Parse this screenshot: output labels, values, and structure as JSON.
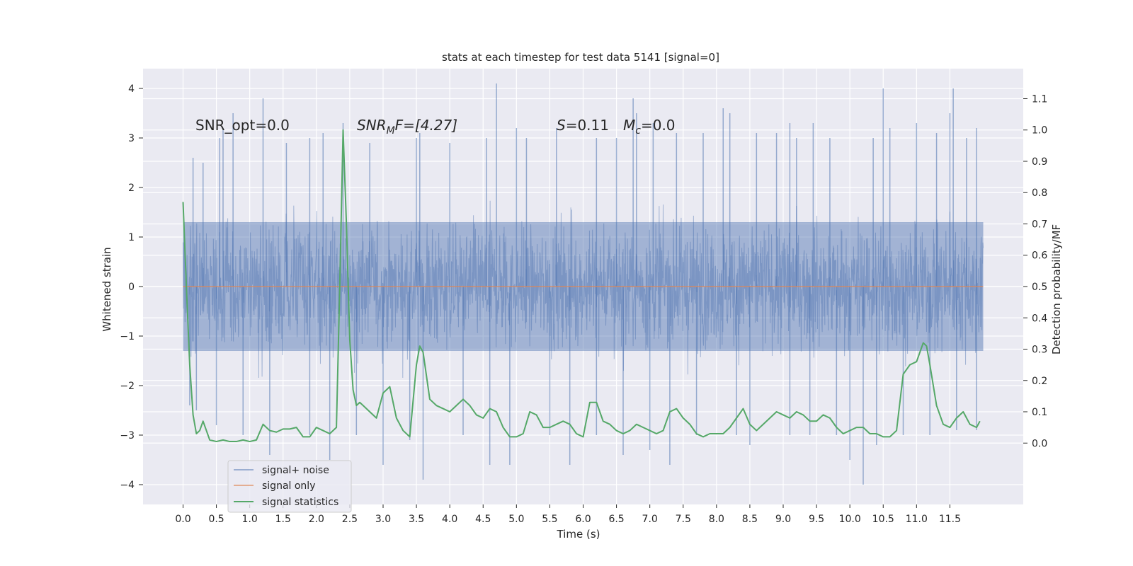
{
  "chart_data": {
    "type": "line",
    "title": "stats at each timestep for test data 5141 [signal=0]",
    "xlabel": "Time (s)",
    "ylabel": "Whitened strain",
    "ylabel_right": "Detection probability/MF",
    "xlim": [
      -0.6,
      12.6
    ],
    "ylim": [
      -4.4,
      4.4
    ],
    "ylim_right": [
      -0.196,
      1.196
    ],
    "x_ticks": [
      "0.0",
      "0.5",
      "1.0",
      "1.5",
      "2.0",
      "2.5",
      "3.0",
      "3.5",
      "4.0",
      "4.5",
      "5.0",
      "5.5",
      "6.0",
      "6.5",
      "7.0",
      "7.5",
      "8.0",
      "8.5",
      "9.0",
      "9.5",
      "10.0",
      "10.5",
      "11.0",
      "11.5"
    ],
    "y_ticks": [
      "4",
      "3",
      "2",
      "1",
      "0",
      "−1",
      "−2",
      "−3",
      "−4"
    ],
    "y_ticks_right": [
      "1.1",
      "1.0",
      "0.9",
      "0.8",
      "0.7",
      "0.6",
      "0.5",
      "0.4",
      "0.3",
      "0.2",
      "0.1",
      "0.0"
    ],
    "grid": true,
    "legend_position": "lower-left",
    "annotations": {
      "snr_opt": "SNR_opt=0.0",
      "snr_mf_main": "SNR",
      "snr_mf_sub": "M",
      "snr_mf_rest": "F=[4.27]",
      "s_label": "S",
      "s_value": "=0.11",
      "mc_label": "M",
      "mc_sub": "c",
      "mc_value": "=0.0"
    },
    "series": [
      {
        "name": "signal+ noise",
        "color": "#4c72b0",
        "axis": "left",
        "x_range": [
          0.0,
          12.0
        ],
        "envelope_upper": 2.2,
        "envelope_lower": -2.0,
        "core_band": [
          -1.3,
          1.3
        ],
        "peak_spikes_up": [
          [
            0.15,
            2.6
          ],
          [
            0.3,
            2.5
          ],
          [
            0.55,
            3.0
          ],
          [
            0.6,
            3.2
          ],
          [
            0.75,
            3.5
          ],
          [
            1.2,
            3.8
          ],
          [
            1.55,
            2.9
          ],
          [
            1.9,
            3.0
          ],
          [
            2.1,
            3.1
          ],
          [
            2.4,
            3.3
          ],
          [
            2.8,
            2.9
          ],
          [
            3.5,
            3.0
          ],
          [
            3.55,
            3.1
          ],
          [
            4.0,
            2.9
          ],
          [
            4.55,
            3.0
          ],
          [
            4.7,
            4.1
          ],
          [
            5.0,
            3.2
          ],
          [
            5.15,
            3.0
          ],
          [
            5.6,
            3.2
          ],
          [
            6.2,
            3.0
          ],
          [
            6.5,
            3.0
          ],
          [
            6.75,
            3.8
          ],
          [
            6.8,
            3.5
          ],
          [
            7.05,
            3.3
          ],
          [
            7.4,
            3.1
          ],
          [
            7.8,
            3.1
          ],
          [
            8.1,
            3.6
          ],
          [
            8.2,
            3.5
          ],
          [
            8.6,
            3.1
          ],
          [
            8.9,
            3.1
          ],
          [
            9.1,
            3.3
          ],
          [
            9.2,
            3.0
          ],
          [
            9.45,
            3.3
          ],
          [
            9.7,
            3.0
          ],
          [
            10.35,
            3.0
          ],
          [
            10.5,
            4.0
          ],
          [
            10.6,
            3.2
          ],
          [
            11.0,
            3.3
          ],
          [
            11.3,
            3.1
          ],
          [
            11.5,
            3.5
          ],
          [
            11.55,
            4.0
          ],
          [
            11.75,
            3.0
          ],
          [
            11.9,
            3.2
          ]
        ],
        "peak_spikes_down": [
          [
            0.1,
            -2.4
          ],
          [
            0.2,
            -2.5
          ],
          [
            0.5,
            -2.8
          ],
          [
            0.9,
            -3.0
          ],
          [
            1.3,
            -3.4
          ],
          [
            1.9,
            -3.0
          ],
          [
            2.2,
            -3.5
          ],
          [
            2.6,
            -3.0
          ],
          [
            3.0,
            -3.6
          ],
          [
            3.4,
            -3.1
          ],
          [
            3.6,
            -3.9
          ],
          [
            4.2,
            -3.0
          ],
          [
            4.6,
            -3.6
          ],
          [
            4.9,
            -3.6
          ],
          [
            5.5,
            -3.0
          ],
          [
            5.8,
            -3.6
          ],
          [
            6.2,
            -3.0
          ],
          [
            6.6,
            -3.4
          ],
          [
            7.0,
            -3.3
          ],
          [
            7.3,
            -3.6
          ],
          [
            7.7,
            -3.0
          ],
          [
            8.3,
            -3.0
          ],
          [
            8.5,
            -3.2
          ],
          [
            9.1,
            -3.0
          ],
          [
            9.4,
            -3.0
          ],
          [
            9.8,
            -3.0
          ],
          [
            10.0,
            -3.5
          ],
          [
            10.2,
            -4.0
          ],
          [
            10.4,
            -3.2
          ],
          [
            10.8,
            -3.0
          ],
          [
            11.2,
            -3.0
          ],
          [
            11.6,
            -2.9
          ],
          [
            11.9,
            -2.9
          ]
        ]
      },
      {
        "name": "signal only",
        "color": "#dd8452",
        "axis": "left",
        "x": [
          0.0,
          12.0
        ],
        "y": [
          0.0,
          0.0
        ]
      },
      {
        "name": "signal statistics",
        "color": "#55a868",
        "axis": "right",
        "x": [
          0.0,
          0.05,
          0.1,
          0.15,
          0.2,
          0.25,
          0.3,
          0.35,
          0.4,
          0.5,
          0.6,
          0.7,
          0.8,
          0.9,
          1.0,
          1.1,
          1.2,
          1.3,
          1.4,
          1.5,
          1.6,
          1.7,
          1.8,
          1.9,
          2.0,
          2.1,
          2.2,
          2.3,
          2.35,
          2.4,
          2.45,
          2.5,
          2.55,
          2.6,
          2.65,
          2.7,
          2.8,
          2.9,
          3.0,
          3.1,
          3.2,
          3.3,
          3.4,
          3.5,
          3.55,
          3.6,
          3.7,
          3.8,
          3.9,
          4.0,
          4.1,
          4.2,
          4.3,
          4.4,
          4.5,
          4.6,
          4.7,
          4.8,
          4.9,
          5.0,
          5.1,
          5.2,
          5.3,
          5.4,
          5.5,
          5.6,
          5.7,
          5.8,
          5.9,
          6.0,
          6.1,
          6.2,
          6.3,
          6.4,
          6.5,
          6.6,
          6.7,
          6.8,
          6.9,
          7.0,
          7.1,
          7.2,
          7.3,
          7.4,
          7.5,
          7.6,
          7.7,
          7.8,
          7.9,
          8.0,
          8.1,
          8.2,
          8.3,
          8.4,
          8.5,
          8.6,
          8.7,
          8.8,
          8.9,
          9.0,
          9.1,
          9.2,
          9.3,
          9.4,
          9.5,
          9.6,
          9.7,
          9.8,
          9.9,
          10.0,
          10.1,
          10.2,
          10.3,
          10.4,
          10.5,
          10.6,
          10.7,
          10.8,
          10.9,
          11.0,
          11.1,
          11.15,
          11.2,
          11.3,
          11.4,
          11.5,
          11.6,
          11.7,
          11.8,
          11.9,
          11.95
        ],
        "y": [
          0.77,
          0.5,
          0.25,
          0.09,
          0.03,
          0.04,
          0.07,
          0.04,
          0.01,
          0.005,
          0.01,
          0.005,
          0.005,
          0.01,
          0.005,
          0.01,
          0.06,
          0.04,
          0.035,
          0.045,
          0.045,
          0.05,
          0.02,
          0.02,
          0.05,
          0.04,
          0.03,
          0.05,
          0.5,
          1.0,
          0.7,
          0.33,
          0.17,
          0.12,
          0.13,
          0.12,
          0.1,
          0.08,
          0.16,
          0.18,
          0.08,
          0.04,
          0.02,
          0.25,
          0.31,
          0.29,
          0.14,
          0.12,
          0.11,
          0.1,
          0.12,
          0.14,
          0.12,
          0.09,
          0.08,
          0.11,
          0.1,
          0.05,
          0.02,
          0.02,
          0.03,
          0.1,
          0.09,
          0.05,
          0.05,
          0.06,
          0.07,
          0.06,
          0.03,
          0.02,
          0.13,
          0.13,
          0.07,
          0.06,
          0.04,
          0.03,
          0.04,
          0.06,
          0.05,
          0.04,
          0.03,
          0.04,
          0.1,
          0.11,
          0.08,
          0.06,
          0.03,
          0.02,
          0.03,
          0.03,
          0.03,
          0.05,
          0.08,
          0.11,
          0.06,
          0.04,
          0.06,
          0.08,
          0.1,
          0.09,
          0.08,
          0.1,
          0.09,
          0.07,
          0.07,
          0.09,
          0.08,
          0.05,
          0.03,
          0.04,
          0.05,
          0.05,
          0.03,
          0.03,
          0.02,
          0.02,
          0.04,
          0.22,
          0.25,
          0.26,
          0.32,
          0.31,
          0.25,
          0.12,
          0.06,
          0.05,
          0.08,
          0.1,
          0.06,
          0.05,
          0.07
        ]
      }
    ]
  }
}
